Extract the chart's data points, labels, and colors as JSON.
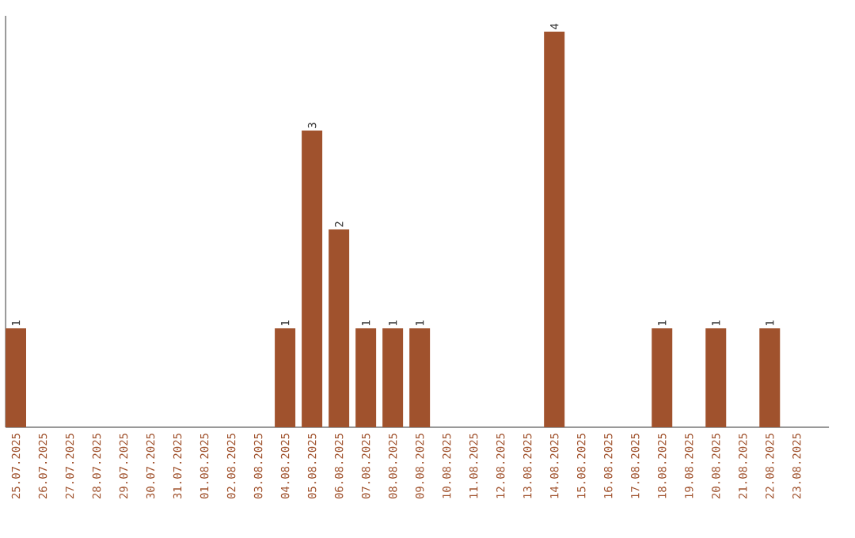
{
  "chart_data": {
    "type": "bar",
    "categories": [
      "25.07.2025",
      "26.07.2025",
      "27.07.2025",
      "28.07.2025",
      "29.07.2025",
      "30.07.2025",
      "31.07.2025",
      "01.08.2025",
      "02.08.2025",
      "03.08.2025",
      "04.08.2025",
      "05.08.2025",
      "06.08.2025",
      "07.08.2025",
      "08.08.2025",
      "09.08.2025",
      "10.08.2025",
      "11.08.2025",
      "12.08.2025",
      "13.08.2025",
      "14.08.2025",
      "15.08.2025",
      "16.08.2025",
      "17.08.2025",
      "18.08.2025",
      "19.08.2025",
      "20.08.2025",
      "21.08.2025",
      "22.08.2025",
      "23.08.2025"
    ],
    "values": [
      1,
      0,
      0,
      0,
      0,
      0,
      0,
      0,
      0,
      0,
      1,
      3,
      2,
      1,
      1,
      1,
      0,
      0,
      0,
      0,
      4,
      0,
      0,
      0,
      1,
      0,
      1,
      0,
      1,
      0
    ],
    "value_labels": [
      "1",
      null,
      null,
      null,
      null,
      null,
      null,
      null,
      null,
      null,
      "1",
      "3",
      "2",
      "1",
      "1",
      "1",
      null,
      null,
      null,
      null,
      "4",
      null,
      null,
      null,
      "1",
      null,
      "1",
      null,
      "1",
      null
    ],
    "color": "#a0522d"
  }
}
